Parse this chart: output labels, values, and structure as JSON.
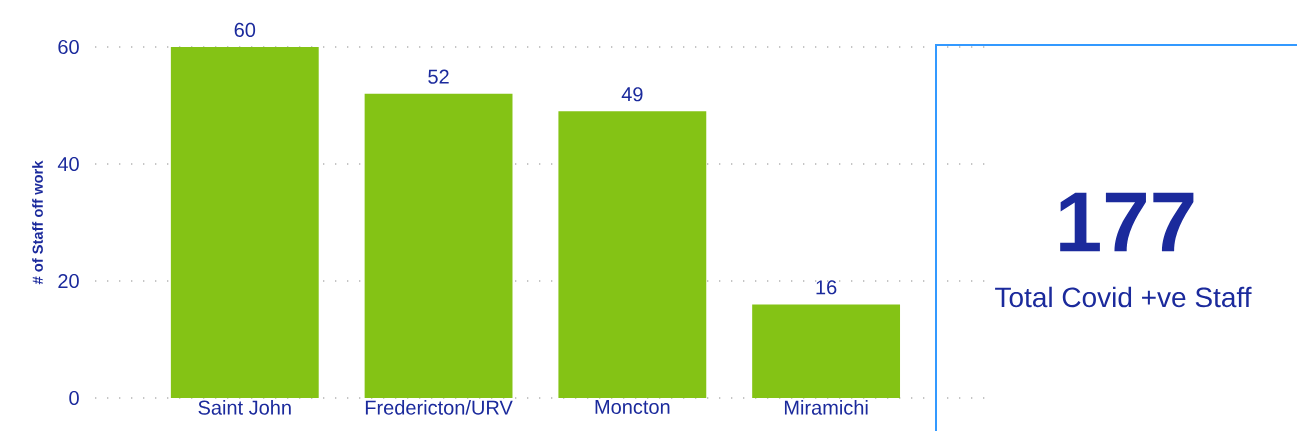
{
  "chart_data": [
    {
      "type": "bar",
      "ylabel": "# of Staff off work",
      "categories": [
        "Saint John",
        "Fredericton/URV",
        "Moncton",
        "Miramichi"
      ],
      "values": [
        60,
        52,
        49,
        16
      ],
      "color": "#84c315",
      "ylim": [
        0,
        60
      ],
      "yticks": [
        0,
        20,
        40,
        60
      ],
      "grid": "y",
      "data_labels": true
    },
    {
      "type": "other",
      "title": "177",
      "subtitle": "Total Covid +ve Staff"
    }
  ]
}
